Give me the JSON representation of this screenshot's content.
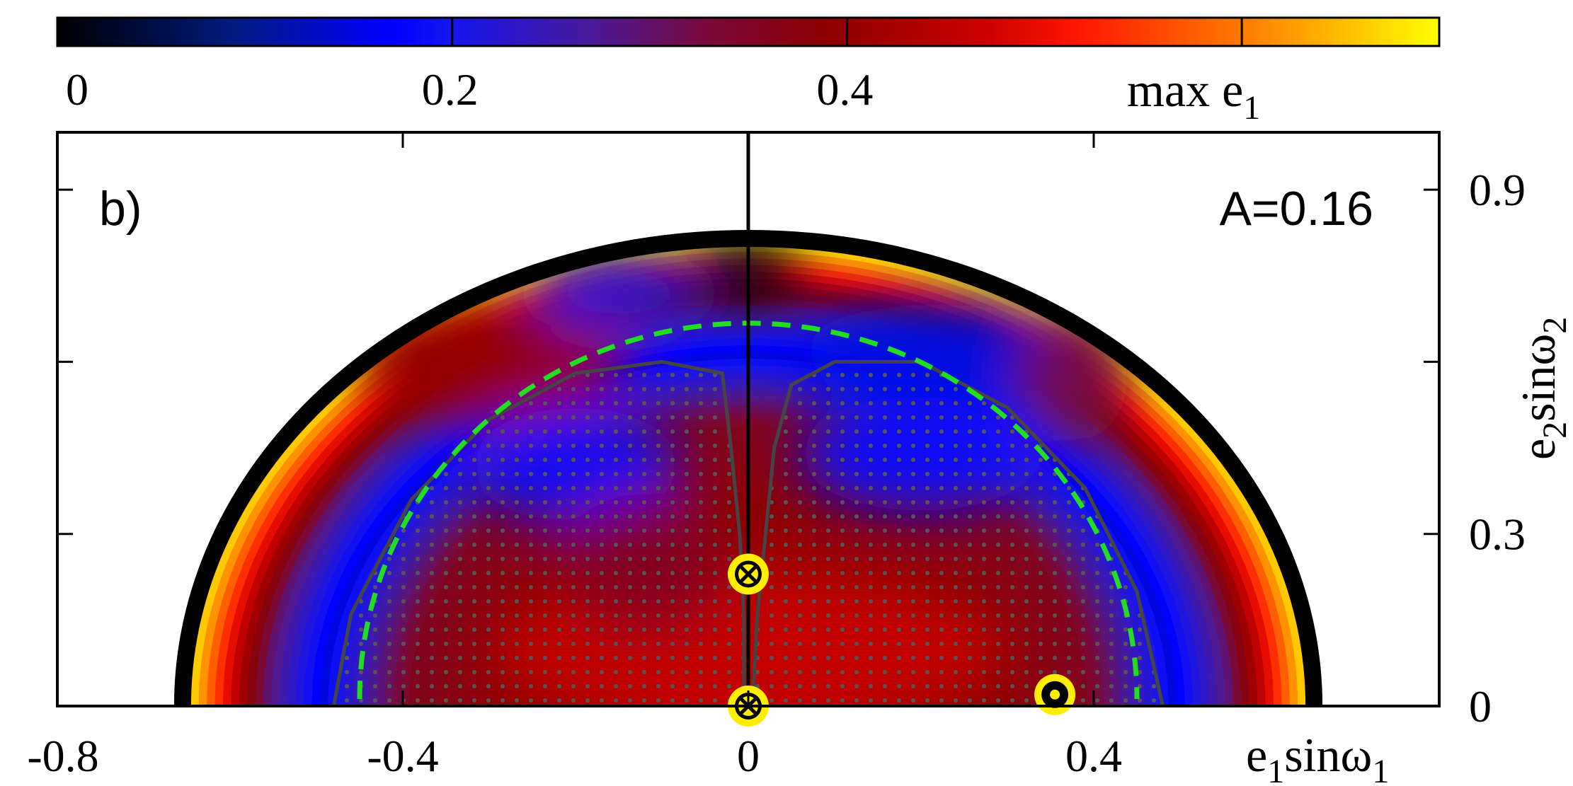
{
  "chart_data": {
    "type": "heatmap",
    "panel_label": "b)",
    "annotation": "A=0.16",
    "xlabel": {
      "base": "e",
      "sub1": "1",
      "mid": "sin",
      "omega": "ω",
      "sub2": "1"
    },
    "ylabel": {
      "base": "e",
      "sub1": "2",
      "mid": "sin",
      "omega": "ω",
      "sub2": "2"
    },
    "xlim": [
      -0.8,
      0.8
    ],
    "ylim": [
      0,
      1.0
    ],
    "x_ticks": [
      {
        "value": -0.8,
        "label": "-0.8"
      },
      {
        "value": -0.4,
        "label": "-0.4"
      },
      {
        "value": 0,
        "label": "0"
      },
      {
        "value": 0.4,
        "label": "0.4"
      }
    ],
    "y_ticks": [
      {
        "value": 0,
        "label": "0"
      },
      {
        "value": 0.3,
        "label": "0.3"
      },
      {
        "value": 0.6,
        "label": ""
      },
      {
        "value": 0.9,
        "label": "0.9"
      }
    ],
    "colorbar": {
      "label_base": "max e",
      "label_sub": "1",
      "range": [
        0,
        0.7
      ],
      "ticks": [
        {
          "value": 0,
          "label": "0"
        },
        {
          "value": 0.2,
          "label": "0.2"
        },
        {
          "value": 0.4,
          "label": "0.4"
        },
        {
          "value": 0.6,
          "label": ""
        }
      ],
      "stops": [
        {
          "v": 0.0,
          "color": "#000000"
        },
        {
          "v": 0.09,
          "color": "#001a80"
        },
        {
          "v": 0.17,
          "color": "#0000ff"
        },
        {
          "v": 0.2,
          "color": "#1616ee"
        },
        {
          "v": 0.27,
          "color": "#4a1a9a"
        },
        {
          "v": 0.33,
          "color": "#7a0a3a"
        },
        {
          "v": 0.39,
          "color": "#8c0000"
        },
        {
          "v": 0.47,
          "color": "#cc0000"
        },
        {
          "v": 0.52,
          "color": "#ff1a00"
        },
        {
          "v": 0.6,
          "color": "#ff7a00"
        },
        {
          "v": 0.7,
          "color": "#ffff00"
        }
      ]
    },
    "outer_boundary": {
      "semi_axis_x": 0.655,
      "semi_axis_y": 0.815
    },
    "dashed_boundary": {
      "semi_axis_x": 0.45,
      "semi_axis_y": 0.655,
      "color": "#22dd22"
    },
    "stable_region": {
      "left": [
        [
          -0.48,
          0
        ],
        [
          -0.46,
          0.16
        ],
        [
          -0.39,
          0.36
        ],
        [
          -0.3,
          0.5
        ],
        [
          -0.2,
          0.58
        ],
        [
          -0.1,
          0.6
        ],
        [
          -0.03,
          0.58
        ],
        [
          -0.02,
          0.45
        ],
        [
          -0.01,
          0.3
        ],
        [
          -0.005,
          0.15
        ],
        [
          -0.005,
          0
        ]
      ],
      "right": [
        [
          0.005,
          0
        ],
        [
          0.01,
          0.15
        ],
        [
          0.02,
          0.3
        ],
        [
          0.03,
          0.45
        ],
        [
          0.05,
          0.56
        ],
        [
          0.1,
          0.6
        ],
        [
          0.2,
          0.6
        ],
        [
          0.3,
          0.52
        ],
        [
          0.39,
          0.38
        ],
        [
          0.45,
          0.2
        ],
        [
          0.48,
          0
        ]
      ],
      "outline_color": "#444444"
    },
    "markers": [
      {
        "x": 0.0,
        "y": 0.23,
        "kind": "cross"
      },
      {
        "x": 0.0,
        "y": 0.0,
        "kind": "cross"
      },
      {
        "x": 0.355,
        "y": 0.02,
        "kind": "dot"
      }
    ],
    "marker_color": "#ffee00",
    "vertical_line_x": 0
  }
}
